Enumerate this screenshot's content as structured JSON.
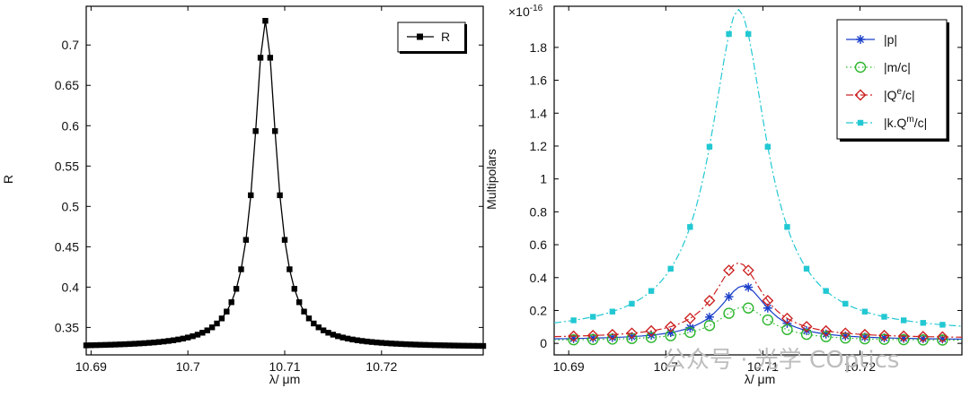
{
  "watermark": {
    "text": "公众号 · 光学 COptics"
  },
  "chart_data": [
    {
      "type": "line",
      "xlabel": "λ/ μm",
      "ylabel": "R",
      "xlim": [
        10.6895,
        10.7305
      ],
      "ylim": [
        0.316,
        0.748
      ],
      "xticks": [
        10.69,
        10.7,
        10.71,
        10.72
      ],
      "xtick_labels": [
        "10.69",
        "10.7",
        "10.71",
        "10.72"
      ],
      "yticks": [
        0.35,
        0.4,
        0.45,
        0.5,
        0.55,
        0.6,
        0.65,
        0.7
      ],
      "ytick_labels": [
        "0.35",
        "0.4",
        "0.45",
        "0.5",
        "0.55",
        "0.6",
        "0.65",
        "0.7"
      ],
      "grid": false,
      "legend": "top-right",
      "series": [
        {
          "name": "R",
          "color": "#000000",
          "marker": "square",
          "resonance": {
            "center": 10.708,
            "width": 0.0014,
            "baseline": 0.3255,
            "peak": 0.73
          },
          "x_range": [
            10.6895,
            10.7305
          ],
          "x_step": 0.0005
        }
      ]
    },
    {
      "type": "line",
      "xlabel": "λ/ μm",
      "ylabel": "Multipolars",
      "exponent_label": "×10",
      "exponent_power": "-16",
      "xlim": [
        10.6885,
        10.7305
      ],
      "ylim": [
        -0.07,
        2.05
      ],
      "xticks": [
        10.69,
        10.7,
        10.71,
        10.72
      ],
      "xtick_labels": [
        "10.69",
        "10.7",
        "10.71",
        "10.72"
      ],
      "yticks": [
        0,
        0.2,
        0.4,
        0.6,
        0.8,
        1,
        1.2,
        1.4,
        1.6,
        1.8
      ],
      "ytick_labels": [
        "0",
        "0.2",
        "0.4",
        "0.6",
        "0.8",
        "1",
        "1.2",
        "1.4",
        "1.6",
        "1.8"
      ],
      "grid": false,
      "legend": "top-right",
      "x_step": 0.002,
      "series": [
        {
          "name": "|p|",
          "color": "#1a3fc9",
          "marker": "asterisk",
          "dash": "solid",
          "resonance": {
            "center": 10.708,
            "width": 0.003,
            "baseline": 0.02,
            "peak": 0.35
          }
        },
        {
          "name": "|m/c|",
          "color": "#2db52d",
          "marker": "circle",
          "dash": "dotted",
          "resonance": {
            "center": 10.708,
            "width": 0.0032,
            "baseline": 0.015,
            "peak": 0.22
          }
        },
        {
          "name": "|Q",
          "sup": "e",
          "name_end": "/c|",
          "color": "#cc2020",
          "marker": "diamond",
          "dash": "dashdot",
          "resonance": {
            "center": 10.7075,
            "width": 0.003,
            "baseline": 0.03,
            "peak": 0.49
          }
        },
        {
          "name": "|k.Q",
          "sup": "m",
          "name_end": "/c|",
          "color": "#22c8d2",
          "marker": "square",
          "dash": "dashdot",
          "resonance": {
            "center": 10.7075,
            "width": 0.0035,
            "baseline": 0.06,
            "peak": 2.03
          }
        }
      ]
    }
  ]
}
